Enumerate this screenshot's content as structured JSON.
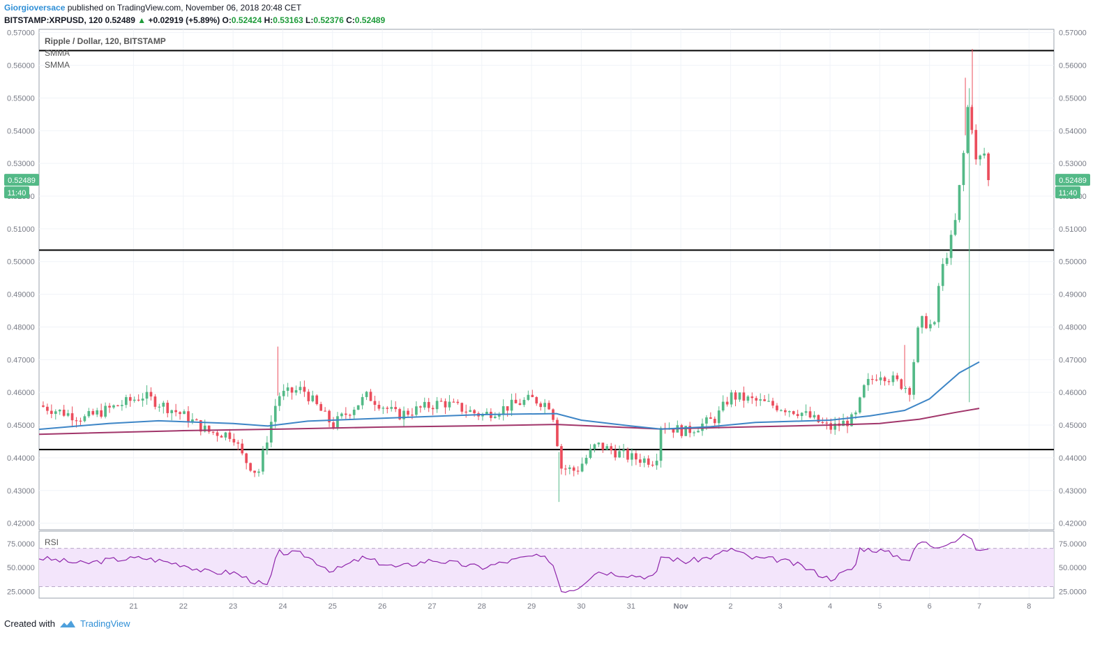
{
  "header": {
    "author": "Giorgioversace",
    "published": "published on TradingView.com, November 06, 2018 20:48 CET",
    "symbol_interval": "BITSTAMP:XRPUSD, 120",
    "last": "0.52489",
    "change": "+0.02919 (+5.89%)",
    "open_label": "O:",
    "open": "0.52424",
    "high_label": "H:",
    "high": "0.53163",
    "low_label": "L:",
    "low": "0.52376",
    "close_label": "C:",
    "close": "0.52489"
  },
  "footer": {
    "created_with": "Created with",
    "brand": "TradingView"
  },
  "colors": {
    "up": "#53b987",
    "down": "#eb4d5c",
    "smma_fast": "#3d85c6",
    "smma_slow": "#a1356a",
    "rsi_line": "#8e24aa",
    "rsi_band": "#f3e5fb",
    "hline": "#000000",
    "grid": "#f0f3f8",
    "axis": "#787b86"
  },
  "chart_data": [
    {
      "type": "candlestick",
      "title": "Ripple / Dollar, 120, BITSTAMP",
      "legend": [
        "SMMA",
        "SMMA"
      ],
      "ylim": [
        0.418,
        0.571
      ],
      "y_ticks": [
        "0.57000",
        "0.56000",
        "0.55000",
        "0.54000",
        "0.53000",
        "0.52000",
        "0.51000",
        "0.50000",
        "0.49000",
        "0.48000",
        "0.47000",
        "0.46000",
        "0.45000",
        "0.44000",
        "0.43000",
        "0.42000"
      ],
      "x_ticks": [
        {
          "label": "21",
          "t": 1.0
        },
        {
          "label": "22",
          "t": 2.0
        },
        {
          "label": "23",
          "t": 3.0
        },
        {
          "label": "24",
          "t": 4.0
        },
        {
          "label": "25",
          "t": 5.0
        },
        {
          "label": "26",
          "t": 6.0
        },
        {
          "label": "27",
          "t": 7.0
        },
        {
          "label": "28",
          "t": 8.0
        },
        {
          "label": "29",
          "t": 9.0
        },
        {
          "label": "30",
          "t": 10.0
        },
        {
          "label": "31",
          "t": 11.0
        },
        {
          "label": "Nov",
          "t": 12.0
        },
        {
          "label": "2",
          "t": 13.0
        },
        {
          "label": "3",
          "t": 14.0
        },
        {
          "label": "4",
          "t": 15.0
        },
        {
          "label": "5",
          "t": 16.0
        },
        {
          "label": "6",
          "t": 17.0
        },
        {
          "label": "7",
          "t": 18.0
        },
        {
          "label": "8",
          "t": 19.0
        }
      ],
      "x_range": [
        -0.9,
        19.5
      ],
      "current_price": {
        "value": 0.52489,
        "label": "0.52489",
        "countdown": "11:40"
      },
      "horizontal_lines": [
        0.5645,
        0.5035,
        0.4425
      ],
      "key_points": [
        {
          "t": -0.9,
          "p": 0.456
        },
        {
          "t": 0.0,
          "p": 0.452
        },
        {
          "t": 1.2,
          "p": 0.459
        },
        {
          "t": 2.0,
          "p": 0.453
        },
        {
          "t": 2.5,
          "p": 0.448
        },
        {
          "t": 3.0,
          "p": 0.447
        },
        {
          "t": 3.2,
          "p": 0.44
        },
        {
          "t": 3.5,
          "p": 0.435
        },
        {
          "t": 3.9,
          "p": 0.459
        },
        {
          "t": 4.4,
          "p": 0.461
        },
        {
          "t": 5.0,
          "p": 0.45
        },
        {
          "t": 5.7,
          "p": 0.459
        },
        {
          "t": 6.3,
          "p": 0.453
        },
        {
          "t": 7.2,
          "p": 0.457
        },
        {
          "t": 8.0,
          "p": 0.453
        },
        {
          "t": 9.0,
          "p": 0.458
        },
        {
          "t": 9.4,
          "p": 0.456
        },
        {
          "t": 9.6,
          "p": 0.437
        },
        {
          "t": 9.9,
          "p": 0.436
        },
        {
          "t": 10.3,
          "p": 0.444
        },
        {
          "t": 11.0,
          "p": 0.44
        },
        {
          "t": 11.5,
          "p": 0.439
        },
        {
          "t": 11.6,
          "p": 0.45
        },
        {
          "t": 12.1,
          "p": 0.448
        },
        {
          "t": 12.7,
          "p": 0.452
        },
        {
          "t": 13.0,
          "p": 0.459
        },
        {
          "t": 13.6,
          "p": 0.457
        },
        {
          "t": 14.4,
          "p": 0.454
        },
        {
          "t": 15.0,
          "p": 0.449
        },
        {
          "t": 15.5,
          "p": 0.452
        },
        {
          "t": 15.7,
          "p": 0.462
        },
        {
          "t": 16.0,
          "p": 0.466
        },
        {
          "t": 16.6,
          "p": 0.461
        },
        {
          "t": 16.8,
          "p": 0.482
        },
        {
          "t": 17.1,
          "p": 0.48
        },
        {
          "t": 17.2,
          "p": 0.495
        },
        {
          "t": 17.4,
          "p": 0.505
        },
        {
          "t": 17.5,
          "p": 0.51
        },
        {
          "t": 17.7,
          "p": 0.535
        },
        {
          "t": 17.8,
          "p": 0.553
        },
        {
          "t": 17.9,
          "p": 0.53
        },
        {
          "t": 18.1,
          "p": 0.533
        },
        {
          "t": 18.25,
          "p": 0.5249
        }
      ],
      "smma_fast": [
        {
          "t": -0.9,
          "p": 0.4487
        },
        {
          "t": 0.5,
          "p": 0.4505
        },
        {
          "t": 1.5,
          "p": 0.4513
        },
        {
          "t": 3.0,
          "p": 0.4505
        },
        {
          "t": 3.7,
          "p": 0.4497
        },
        {
          "t": 4.5,
          "p": 0.4512
        },
        {
          "t": 6.0,
          "p": 0.4521
        },
        {
          "t": 8.0,
          "p": 0.4532
        },
        {
          "t": 9.5,
          "p": 0.4535
        },
        {
          "t": 10.0,
          "p": 0.4515
        },
        {
          "t": 11.0,
          "p": 0.4497
        },
        {
          "t": 11.6,
          "p": 0.4488
        },
        {
          "t": 12.6,
          "p": 0.4495
        },
        {
          "t": 13.5,
          "p": 0.4508
        },
        {
          "t": 15.0,
          "p": 0.4515
        },
        {
          "t": 15.8,
          "p": 0.4528
        },
        {
          "t": 16.5,
          "p": 0.4545
        },
        {
          "t": 17.0,
          "p": 0.458
        },
        {
          "t": 17.3,
          "p": 0.462
        },
        {
          "t": 17.6,
          "p": 0.466
        },
        {
          "t": 18.0,
          "p": 0.4693
        }
      ],
      "smma_slow": [
        {
          "t": -0.9,
          "p": 0.4472
        },
        {
          "t": 2.0,
          "p": 0.4483
        },
        {
          "t": 4.0,
          "p": 0.4488
        },
        {
          "t": 6.0,
          "p": 0.4494
        },
        {
          "t": 8.0,
          "p": 0.4498
        },
        {
          "t": 9.5,
          "p": 0.4502
        },
        {
          "t": 11.0,
          "p": 0.4492
        },
        {
          "t": 11.6,
          "p": 0.4488
        },
        {
          "t": 13.0,
          "p": 0.4493
        },
        {
          "t": 15.0,
          "p": 0.45
        },
        {
          "t": 16.0,
          "p": 0.4505
        },
        {
          "t": 16.8,
          "p": 0.4518
        },
        {
          "t": 17.5,
          "p": 0.4538
        },
        {
          "t": 18.0,
          "p": 0.4551
        }
      ],
      "spikes": [
        {
          "t": 17.72,
          "p": 0.5562,
          "kind": "high"
        },
        {
          "t": 17.86,
          "p": 0.565,
          "kind": "high"
        },
        {
          "t": 17.8,
          "p": 0.457,
          "kind": "low"
        },
        {
          "t": 3.9,
          "p": 0.474,
          "kind": "high"
        },
        {
          "t": 9.55,
          "p": 0.4265,
          "kind": "low"
        },
        {
          "t": 16.5,
          "p": 0.4745,
          "kind": "high"
        }
      ]
    },
    {
      "type": "line",
      "title": "RSI",
      "ylim": [
        18,
        88
      ],
      "y_ticks": [
        "75.0000",
        "50.0000",
        "25.0000"
      ],
      "band": [
        30,
        70
      ],
      "key_points": [
        {
          "t": -0.9,
          "p": 60
        },
        {
          "t": 0.0,
          "p": 54
        },
        {
          "t": 0.5,
          "p": 58
        },
        {
          "t": 1.2,
          "p": 60
        },
        {
          "t": 2.0,
          "p": 53
        },
        {
          "t": 2.5,
          "p": 45
        },
        {
          "t": 3.0,
          "p": 45
        },
        {
          "t": 3.3,
          "p": 38
        },
        {
          "t": 3.7,
          "p": 30
        },
        {
          "t": 3.9,
          "p": 66
        },
        {
          "t": 4.4,
          "p": 64
        },
        {
          "t": 5.0,
          "p": 46
        },
        {
          "t": 5.6,
          "p": 60
        },
        {
          "t": 6.3,
          "p": 50
        },
        {
          "t": 7.0,
          "p": 58
        },
        {
          "t": 8.0,
          "p": 50
        },
        {
          "t": 9.0,
          "p": 62
        },
        {
          "t": 9.4,
          "p": 58
        },
        {
          "t": 9.6,
          "p": 26
        },
        {
          "t": 9.9,
          "p": 28
        },
        {
          "t": 10.3,
          "p": 46
        },
        {
          "t": 11.0,
          "p": 42
        },
        {
          "t": 11.5,
          "p": 40
        },
        {
          "t": 11.6,
          "p": 62
        },
        {
          "t": 12.1,
          "p": 56
        },
        {
          "t": 12.7,
          "p": 62
        },
        {
          "t": 13.0,
          "p": 70
        },
        {
          "t": 13.4,
          "p": 60
        },
        {
          "t": 14.0,
          "p": 58
        },
        {
          "t": 14.4,
          "p": 52
        },
        {
          "t": 15.0,
          "p": 38
        },
        {
          "t": 15.5,
          "p": 50
        },
        {
          "t": 15.6,
          "p": 70
        },
        {
          "t": 16.0,
          "p": 68
        },
        {
          "t": 16.6,
          "p": 58
        },
        {
          "t": 16.8,
          "p": 78
        },
        {
          "t": 17.1,
          "p": 72
        },
        {
          "t": 17.5,
          "p": 78
        },
        {
          "t": 17.8,
          "p": 85
        },
        {
          "t": 17.9,
          "p": 70
        },
        {
          "t": 18.1,
          "p": 68
        },
        {
          "t": 18.25,
          "p": 67
        }
      ]
    }
  ]
}
